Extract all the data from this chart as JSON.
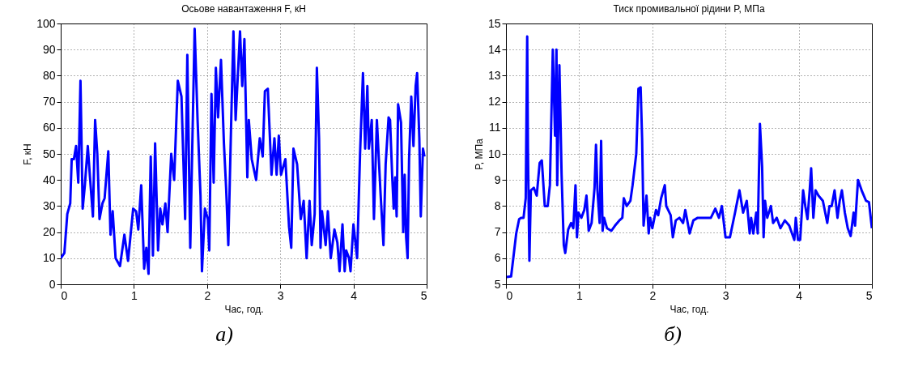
{
  "chart_data": [
    {
      "type": "line",
      "title": "Осьове навантаження F, кН",
      "xlabel": "Час, год.",
      "ylabel": "F, кН",
      "annotations": [
        "а)"
      ],
      "grid": true,
      "xlim": [
        0,
        5
      ],
      "xticks": [
        0,
        1,
        2,
        3,
        4,
        5
      ],
      "ylim": [
        0,
        100
      ],
      "yticks": [
        0,
        10,
        20,
        30,
        40,
        50,
        60,
        70,
        80,
        90,
        100
      ],
      "series": [
        {
          "color": "#0000ff",
          "x": [
            0,
            0.05,
            0.09,
            0.13,
            0.15,
            0.18,
            0.21,
            0.24,
            0.27,
            0.3,
            0.33,
            0.37,
            0.4,
            0.44,
            0.47,
            0.5,
            0.53,
            0.57,
            0.6,
            0.65,
            0.68,
            0.71,
            0.75,
            0.81,
            0.87,
            0.92,
            0.99,
            1.03,
            1.06,
            1.1,
            1.14,
            1.17,
            1.2,
            1.23,
            1.26,
            1.29,
            1.33,
            1.36,
            1.39,
            1.43,
            1.46,
            1.51,
            1.55,
            1.6,
            1.65,
            1.7,
            1.73,
            1.77,
            1.83,
            1.87,
            1.91,
            1.93,
            1.97,
            2.01,
            2.03,
            2.06,
            2.09,
            2.12,
            2.15,
            2.19,
            2.23,
            2.26,
            2.29,
            2.33,
            2.36,
            2.39,
            2.45,
            2.48,
            2.51,
            2.55,
            2.57,
            2.61,
            2.67,
            2.72,
            2.76,
            2.79,
            2.83,
            2.88,
            2.92,
            2.95,
            2.98,
            3.01,
            3.07,
            3.12,
            3.15,
            3.18,
            3.23,
            3.28,
            3.32,
            3.36,
            3.4,
            3.43,
            3.47,
            3.5,
            3.53,
            3.55,
            3.57,
            3.62,
            3.65,
            3.69,
            3.74,
            3.78,
            3.81,
            3.85,
            3.88,
            3.9,
            3.94,
            3.96,
            4,
            4.05,
            4.09,
            4.13,
            4.16,
            4.19,
            4.21,
            4.25,
            4.28,
            4.32,
            4.37,
            4.41,
            4.44,
            4.48,
            4.5,
            4.53,
            4.55,
            4.57,
            4.59,
            4.61,
            4.65,
            4.68,
            4.7,
            4.72,
            4.74,
            4.76,
            4.79,
            4.82,
            4.85,
            4.87,
            4.9,
            4.92,
            4.95,
            4.97
          ],
          "values": [
            10,
            12,
            27,
            31,
            48,
            48,
            53,
            39,
            78,
            29,
            38,
            53,
            41,
            26,
            63,
            50,
            25,
            31,
            33,
            51,
            19,
            28,
            10,
            7,
            19,
            9,
            29,
            28,
            21,
            38,
            6,
            14,
            4,
            49,
            11,
            54,
            13,
            29,
            23,
            31,
            20,
            50,
            40,
            78,
            72,
            25,
            88,
            14,
            98,
            63,
            34,
            5,
            29,
            25,
            13,
            73,
            39,
            83,
            64,
            86,
            54,
            37,
            15,
            63,
            97,
            63,
            97,
            76,
            94,
            41,
            63,
            48,
            40,
            56,
            49,
            74,
            75,
            42,
            56,
            42,
            57,
            42,
            48,
            22,
            14,
            52,
            46,
            25,
            32,
            10,
            32,
            15,
            27,
            83,
            56,
            14,
            28,
            15,
            28,
            10,
            21,
            16,
            5,
            23,
            5,
            13,
            10,
            5,
            23,
            10,
            50,
            81,
            52,
            76,
            52,
            63,
            25,
            63,
            35,
            15,
            46,
            64,
            63,
            41,
            29,
            41,
            26,
            69,
            62,
            20,
            42,
            18,
            10,
            48,
            72,
            53,
            76,
            81,
            56,
            26,
            52,
            49
          ]
        }
      ]
    },
    {
      "type": "line",
      "title": "Тиск промивальної рідини P, МПа",
      "xlabel": "Час, год.",
      "ylabel": "P, МПа",
      "annotations": [
        "б)"
      ],
      "grid": true,
      "xlim": [
        0,
        5
      ],
      "xticks": [
        0,
        1,
        2,
        3,
        4,
        5
      ],
      "ylim": [
        5,
        15
      ],
      "yticks": [
        5,
        6,
        7,
        8,
        9,
        10,
        11,
        12,
        13,
        14,
        15
      ],
      "series": [
        {
          "color": "#0000ff",
          "x": [
            0.01,
            0.07,
            0.1,
            0.14,
            0.18,
            0.21,
            0.24,
            0.27,
            0.29,
            0.3,
            0.32,
            0.34,
            0.38,
            0.42,
            0.46,
            0.49,
            0.53,
            0.57,
            0.6,
            0.64,
            0.67,
            0.69,
            0.7,
            0.73,
            0.76,
            0.79,
            0.81,
            0.85,
            0.89,
            0.92,
            0.95,
            0.97,
            0.99,
            1.03,
            1.07,
            1.1,
            1.13,
            1.17,
            1.21,
            1.23,
            1.25,
            1.28,
            1.3,
            1.32,
            1.34,
            1.38,
            1.44,
            1.49,
            1.55,
            1.59,
            1.61,
            1.65,
            1.7,
            1.73,
            1.78,
            1.81,
            1.84,
            1.86,
            1.88,
            1.92,
            1.95,
            1.97,
            2,
            2.05,
            2.08,
            2.12,
            2.17,
            2.19,
            2.25,
            2.28,
            2.32,
            2.37,
            2.42,
            2.45,
            2.51,
            2.56,
            2.62,
            2.8,
            2.86,
            2.91,
            2.95,
            3,
            3.06,
            3.13,
            3.19,
            3.24,
            3.29,
            3.33,
            3.35,
            3.38,
            3.42,
            3.44,
            3.47,
            3.5,
            3.52,
            3.54,
            3.57,
            3.62,
            3.65,
            3.7,
            3.75,
            3.81,
            3.87,
            3.94,
            3.96,
            3.99,
            4.02,
            4.06,
            4.09,
            4.12,
            4.15,
            4.17,
            4.2,
            4.23,
            4.27,
            4.33,
            4.39,
            4.42,
            4.45,
            4.49,
            4.53,
            4.56,
            4.59,
            4.63,
            4.67,
            4.71,
            4.75,
            4.77,
            4.81,
            4.86,
            4.92,
            4.96,
            5
          ],
          "values": [
            5.28,
            5.3,
            6,
            6.95,
            7.5,
            7.55,
            7.55,
            8.3,
            14.5,
            10.2,
            5.9,
            8.6,
            8.7,
            8.4,
            9.65,
            9.75,
            8,
            8,
            8.8,
            14,
            10.7,
            14,
            8.8,
            13.4,
            9.2,
            6.5,
            6.2,
            7.1,
            7.35,
            7.15,
            8.8,
            6.8,
            7.75,
            7.55,
            7.85,
            8.4,
            7.05,
            7.35,
            8.7,
            10.35,
            8.6,
            7.35,
            10.5,
            7.05,
            7.55,
            7.15,
            7.05,
            7.25,
            7.45,
            7.55,
            8.3,
            8,
            8.2,
            8.8,
            10,
            12.5,
            12.55,
            10.6,
            7.25,
            8.4,
            6.95,
            7.55,
            7.15,
            7.85,
            7.65,
            8.3,
            8.8,
            8,
            7.65,
            6.8,
            7.45,
            7.55,
            7.35,
            7.85,
            6.95,
            7.45,
            7.55,
            7.55,
            7.9,
            7.55,
            8,
            6.8,
            6.8,
            7.75,
            8.6,
            7.75,
            8.2,
            6.95,
            7.55,
            6.95,
            7.75,
            6.95,
            11.15,
            9.5,
            6.8,
            8.2,
            7.55,
            8,
            7.35,
            7.55,
            7.15,
            7.45,
            7.25,
            6.7,
            7.55,
            6.7,
            6.7,
            8.6,
            8,
            7.5,
            8.6,
            9.45,
            7.55,
            8.6,
            8.4,
            8.2,
            7.35,
            8,
            8,
            8.6,
            7.55,
            8.2,
            8.6,
            7.75,
            7.15,
            6.85,
            7.75,
            7.25,
            9,
            8.6,
            8.2,
            8.15,
            7.15
          ]
        }
      ]
    }
  ]
}
